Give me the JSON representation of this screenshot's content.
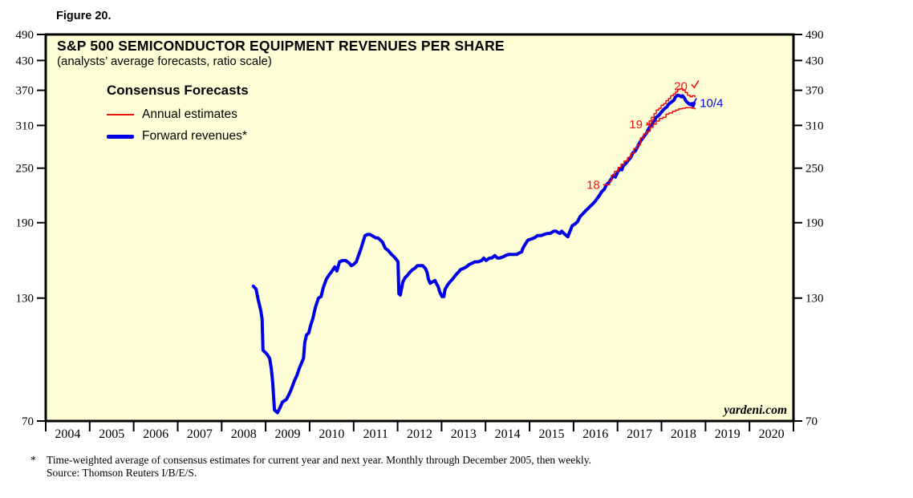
{
  "figure": {
    "label": "Figure 20."
  },
  "chart": {
    "title": "S&P 500 SEMICONDUCTOR EQUIPMENT REVENUES PER SHARE",
    "subtitle": "(analysts’ average forecasts, ratio scale)",
    "watermark": "yardeni.com"
  },
  "legend": {
    "title": "Consensus Forecasts",
    "items": [
      {
        "label": "Annual estimates",
        "swatch": "red"
      },
      {
        "label": "Forward revenues*",
        "swatch": "blue"
      }
    ]
  },
  "footnote": {
    "marker": "*",
    "line1": "Time-weighted average of consensus estimates for current year and next year. Monthly through December 2005, then weekly.",
    "line2": "Source: Thomson Reuters I/B/E/S."
  },
  "colors": {
    "background": "#ffffd7",
    "red": "#ec1111",
    "blue": "#0000e6",
    "frame": "#000000"
  },
  "chart_data": {
    "type": "line",
    "y_scale": "log",
    "ylim": [
      70,
      490
    ],
    "yticks": [
      70,
      130,
      190,
      250,
      310,
      370,
      430,
      490
    ],
    "xlim": [
      2004,
      2021
    ],
    "xticks": [
      "2004",
      "2005",
      "2006",
      "2007",
      "2008",
      "2009",
      "2010",
      "2011",
      "2012",
      "2013",
      "2014",
      "2015",
      "2016",
      "2017",
      "2018",
      "2019",
      "2020"
    ],
    "grid": false,
    "legend_position": "top-left-inside",
    "series": [
      {
        "id": "forward-revenues",
        "name": "Forward revenues",
        "color": "blue",
        "width": 4,
        "step": false,
        "points": [
          [
            2008.72,
            138
          ],
          [
            2008.78,
            136
          ],
          [
            2008.83,
            129
          ],
          [
            2008.89,
            122
          ],
          [
            2008.92,
            117
          ],
          [
            2008.94,
            100
          ],
          [
            2009.03,
            98
          ],
          [
            2009.09,
            96
          ],
          [
            2009.13,
            91
          ],
          [
            2009.16,
            85
          ],
          [
            2009.2,
            74
          ],
          [
            2009.27,
            73
          ],
          [
            2009.33,
            75
          ],
          [
            2009.38,
            77
          ],
          [
            2009.47,
            78
          ],
          [
            2009.53,
            80
          ],
          [
            2009.58,
            82
          ],
          [
            2009.66,
            86
          ],
          [
            2009.71,
            88
          ],
          [
            2009.76,
            91
          ],
          [
            2009.82,
            94
          ],
          [
            2009.86,
            96
          ],
          [
            2009.89,
            104
          ],
          [
            2009.93,
            108
          ],
          [
            2009.98,
            109
          ],
          [
            2010.02,
            113
          ],
          [
            2010.07,
            117
          ],
          [
            2010.13,
            124
          ],
          [
            2010.2,
            130
          ],
          [
            2010.26,
            131
          ],
          [
            2010.31,
            137
          ],
          [
            2010.38,
            143
          ],
          [
            2010.44,
            146
          ],
          [
            2010.49,
            148
          ],
          [
            2010.57,
            152
          ],
          [
            2010.62,
            149
          ],
          [
            2010.68,
            156
          ],
          [
            2010.75,
            157
          ],
          [
            2010.82,
            157
          ],
          [
            2010.9,
            155
          ],
          [
            2010.95,
            153
          ],
          [
            2011.0,
            154
          ],
          [
            2011.06,
            156
          ],
          [
            2011.11,
            161
          ],
          [
            2011.17,
            167
          ],
          [
            2011.21,
            172
          ],
          [
            2011.26,
            178
          ],
          [
            2011.31,
            179
          ],
          [
            2011.37,
            179
          ],
          [
            2011.42,
            178
          ],
          [
            2011.5,
            176
          ],
          [
            2011.55,
            176
          ],
          [
            2011.61,
            174
          ],
          [
            2011.66,
            172
          ],
          [
            2011.72,
            167
          ],
          [
            2011.79,
            165
          ],
          [
            2011.86,
            162
          ],
          [
            2011.92,
            160
          ],
          [
            2011.97,
            158
          ],
          [
            2012.01,
            156
          ],
          [
            2012.03,
            133
          ],
          [
            2012.06,
            132
          ],
          [
            2012.12,
            141
          ],
          [
            2012.17,
            144
          ],
          [
            2012.23,
            146
          ],
          [
            2012.28,
            148
          ],
          [
            2012.34,
            150
          ],
          [
            2012.39,
            151
          ],
          [
            2012.45,
            153
          ],
          [
            2012.52,
            153
          ],
          [
            2012.57,
            153
          ],
          [
            2012.63,
            151
          ],
          [
            2012.67,
            148
          ],
          [
            2012.7,
            143
          ],
          [
            2012.74,
            140
          ],
          [
            2012.79,
            141
          ],
          [
            2012.85,
            142
          ],
          [
            2012.88,
            140
          ],
          [
            2012.92,
            138
          ],
          [
            2012.96,
            134
          ],
          [
            2013.01,
            131
          ],
          [
            2013.05,
            131
          ],
          [
            2013.08,
            136
          ],
          [
            2013.14,
            139
          ],
          [
            2013.19,
            141
          ],
          [
            2013.25,
            143
          ],
          [
            2013.32,
            146
          ],
          [
            2013.38,
            148
          ],
          [
            2013.43,
            150
          ],
          [
            2013.5,
            151
          ],
          [
            2013.56,
            152
          ],
          [
            2013.63,
            154
          ],
          [
            2013.7,
            155
          ],
          [
            2013.76,
            156
          ],
          [
            2013.83,
            156
          ],
          [
            2013.91,
            157
          ],
          [
            2013.96,
            159
          ],
          [
            2014.01,
            157
          ],
          [
            2014.09,
            159
          ],
          [
            2014.14,
            159
          ],
          [
            2014.21,
            161
          ],
          [
            2014.27,
            159
          ],
          [
            2014.32,
            159
          ],
          [
            2014.4,
            160
          ],
          [
            2014.45,
            161
          ],
          [
            2014.53,
            162
          ],
          [
            2014.58,
            162
          ],
          [
            2014.65,
            162
          ],
          [
            2014.71,
            162
          ],
          [
            2014.76,
            163
          ],
          [
            2014.82,
            164
          ],
          [
            2014.85,
            167
          ],
          [
            2014.91,
            171
          ],
          [
            2014.96,
            174
          ],
          [
            2015.04,
            175
          ],
          [
            2015.11,
            176
          ],
          [
            2015.18,
            178
          ],
          [
            2015.26,
            178
          ],
          [
            2015.33,
            179
          ],
          [
            2015.4,
            180
          ],
          [
            2015.47,
            180
          ],
          [
            2015.55,
            182
          ],
          [
            2015.6,
            182
          ],
          [
            2015.64,
            181
          ],
          [
            2015.69,
            180
          ],
          [
            2015.73,
            182
          ],
          [
            2015.78,
            180
          ],
          [
            2015.84,
            178
          ],
          [
            2015.87,
            177
          ],
          [
            2015.91,
            181
          ],
          [
            2015.97,
            187
          ],
          [
            2016.04,
            189
          ],
          [
            2016.09,
            191
          ],
          [
            2016.15,
            196
          ],
          [
            2016.22,
            199
          ],
          [
            2016.28,
            202
          ],
          [
            2016.33,
            204
          ],
          [
            2016.37,
            206
          ],
          [
            2016.42,
            208
          ],
          [
            2016.48,
            211
          ],
          [
            2016.53,
            214
          ],
          [
            2016.59,
            218
          ],
          [
            2016.64,
            222
          ],
          [
            2016.7,
            225
          ],
          [
            2016.75,
            230
          ],
          [
            2016.81,
            233
          ],
          [
            2016.86,
            237
          ],
          [
            2016.91,
            241
          ],
          [
            2016.95,
            239
          ],
          [
            2017.01,
            246
          ],
          [
            2017.06,
            249
          ],
          [
            2017.1,
            248
          ],
          [
            2017.13,
            253
          ],
          [
            2017.19,
            256
          ],
          [
            2017.24,
            260
          ],
          [
            2017.3,
            264
          ],
          [
            2017.35,
            270
          ],
          [
            2017.41,
            273
          ],
          [
            2017.46,
            279
          ],
          [
            2017.52,
            286
          ],
          [
            2017.55,
            289
          ],
          [
            2017.59,
            292
          ],
          [
            2017.63,
            296
          ],
          [
            2017.66,
            298
          ],
          [
            2017.7,
            304
          ],
          [
            2017.74,
            308
          ],
          [
            2017.77,
            310
          ],
          [
            2017.81,
            315
          ],
          [
            2017.84,
            318
          ],
          [
            2017.88,
            323
          ],
          [
            2017.92,
            325
          ],
          [
            2017.95,
            327
          ],
          [
            2017.99,
            331
          ],
          [
            2018.05,
            336
          ],
          [
            2018.08,
            338
          ],
          [
            2018.12,
            340
          ],
          [
            2018.16,
            345
          ],
          [
            2018.21,
            348
          ],
          [
            2018.25,
            350
          ],
          [
            2018.28,
            352
          ],
          [
            2018.32,
            358
          ],
          [
            2018.37,
            361
          ],
          [
            2018.41,
            360
          ],
          [
            2018.45,
            358
          ],
          [
            2018.48,
            360
          ],
          [
            2018.52,
            356
          ],
          [
            2018.56,
            350
          ],
          [
            2018.59,
            348
          ],
          [
            2018.63,
            345
          ],
          [
            2018.67,
            344
          ],
          [
            2018.69,
            346
          ],
          [
            2018.72,
            342
          ],
          [
            2018.74,
            347
          ]
        ]
      },
      {
        "id": "annual-estimates-2018",
        "name": "Annual estimates (2018)",
        "color": "red",
        "width": 1.5,
        "step": true,
        "points": [
          [
            2016.79,
            234
          ],
          [
            2016.86,
            241
          ],
          [
            2016.93,
            246
          ],
          [
            2017.01,
            251
          ],
          [
            2017.08,
            255
          ],
          [
            2017.15,
            259
          ],
          [
            2017.23,
            264
          ],
          [
            2017.3,
            269
          ],
          [
            2017.37,
            276
          ],
          [
            2017.44,
            281
          ],
          [
            2017.52,
            291
          ],
          [
            2017.59,
            297
          ],
          [
            2017.66,
            301
          ],
          [
            2017.74,
            307
          ],
          [
            2017.81,
            312
          ],
          [
            2017.88,
            317
          ],
          [
            2017.95,
            321
          ],
          [
            2018.03,
            323
          ],
          [
            2018.1,
            328
          ],
          [
            2018.17,
            330
          ],
          [
            2018.25,
            333
          ],
          [
            2018.32,
            335
          ],
          [
            2018.39,
            337
          ],
          [
            2018.47,
            338
          ],
          [
            2018.54,
            339
          ],
          [
            2018.61,
            339
          ],
          [
            2018.69,
            338
          ],
          [
            2018.76,
            337
          ]
        ]
      },
      {
        "id": "annual-estimates-2019-20",
        "name": "Annual estimates (2019/2020)",
        "color": "red",
        "width": 1.5,
        "step": true,
        "points": [
          [
            2017.66,
            311
          ],
          [
            2017.72,
            317
          ],
          [
            2017.77,
            323
          ],
          [
            2017.83,
            329
          ],
          [
            2017.88,
            335
          ],
          [
            2017.94,
            338
          ],
          [
            2017.99,
            343
          ],
          [
            2018.05,
            346
          ],
          [
            2018.1,
            351
          ],
          [
            2018.16,
            355
          ],
          [
            2018.21,
            360
          ],
          [
            2018.27,
            363
          ],
          [
            2018.32,
            367
          ],
          [
            2018.37,
            372
          ],
          [
            2018.43,
            373
          ],
          [
            2018.48,
            370
          ],
          [
            2018.54,
            366
          ],
          [
            2018.59,
            361
          ],
          [
            2018.65,
            358
          ],
          [
            2018.7,
            360
          ],
          [
            2018.76,
            358
          ]
        ]
      }
    ],
    "annotations": [
      {
        "text": "18",
        "x": 2016.6,
        "y": 230,
        "color": "red",
        "anchor": "end",
        "mark": "dash"
      },
      {
        "text": "19",
        "x": 2017.57,
        "y": 312,
        "color": "red",
        "anchor": "end",
        "mark": "check"
      },
      {
        "text": "20",
        "x": 2018.59,
        "y": 378,
        "color": "red",
        "anchor": "end",
        "mark": "check"
      },
      {
        "text": "10/4",
        "x": 2018.87,
        "y": 347,
        "color": "blue",
        "anchor": "start",
        "mark": "check-before"
      }
    ]
  }
}
